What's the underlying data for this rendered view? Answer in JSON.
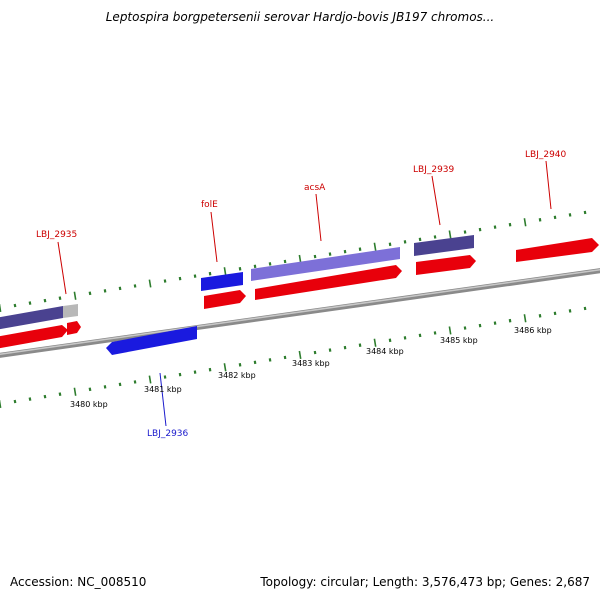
{
  "title": "Leptospira borgpetersenii serovar Hardjo-bovis JB197 chromos...",
  "footer": {
    "accession": "Accession: NC_008510",
    "stats": "Topology: circular; Length: 3,576,473 bp; Genes: 2,687"
  },
  "colors": {
    "forward_cds": "#e8000b",
    "reverse_cds": "#1a1adf",
    "forward_gene": "#4a4290",
    "forward_gene_light": "#7d70d8",
    "reverse_label": "#1a1acc",
    "forward_label": "#cc0000",
    "tick": "#2e7d2e",
    "backbone": "#8a8a8a"
  },
  "kbp_labels": [
    {
      "text": "3480 kbp",
      "value": 3480
    },
    {
      "text": "3481 kbp",
      "value": 3481
    },
    {
      "text": "3482 kbp",
      "value": 3482
    },
    {
      "text": "3483 kbp",
      "value": 3483
    },
    {
      "text": "3484 kbp",
      "value": 3484
    },
    {
      "text": "3485 kbp",
      "value": 3485
    },
    {
      "text": "3486 kbp",
      "value": 3486
    }
  ],
  "gene_labels": [
    {
      "text": "LBJ_2935",
      "strand": "forward"
    },
    {
      "text": "folE",
      "strand": "forward"
    },
    {
      "text": "acsA",
      "strand": "forward"
    },
    {
      "text": "LBJ_2939",
      "strand": "forward"
    },
    {
      "text": "LBJ_2940",
      "strand": "forward"
    },
    {
      "text": "LBJ_2936",
      "strand": "reverse"
    }
  ]
}
